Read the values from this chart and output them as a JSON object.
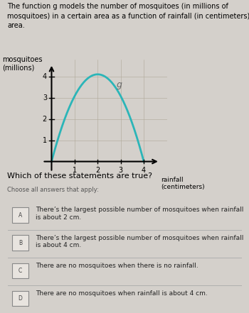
{
  "title_text": "The function g models the number of mosquitoes (in millions of\nmosquitoes) in a certain area as a function of rainfall (in centimeters) in that\narea.",
  "ylabel_line1": "mosquitoes",
  "ylabel_line2": "(millions)",
  "xlabel_line1": "rainfall",
  "xlabel_line2": "(centimeters)",
  "curve_color": "#2bb5b8",
  "curve_label": "g",
  "x_peak": 2,
  "y_peak": 4.1,
  "x_start": 0,
  "x_end": 4,
  "yticks": [
    1,
    2,
    3,
    4
  ],
  "xticks": [
    1,
    2,
    3,
    4
  ],
  "xlim": [
    -0.4,
    5.0
  ],
  "ylim": [
    -0.5,
    4.8
  ],
  "bg_color": "#d4d0cb",
  "question": "Which of these statements are true?",
  "instruction": "Choose all answers that apply:",
  "answers": [
    {
      "label": "A",
      "text": "There’s the largest possible number of mosquitoes when rainfall is about 2 cm.",
      "selected": true
    },
    {
      "label": "B",
      "text": "There’s the largest possible number of mosquitoes when rainfall is about 4 cm.",
      "selected": true
    },
    {
      "label": "C",
      "text": "There are no mosquitoes when there is no rainfall.",
      "selected": false
    },
    {
      "label": "D",
      "text": "There are no mosquitoes when rainfall is about 4 cm.",
      "selected": false
    }
  ]
}
